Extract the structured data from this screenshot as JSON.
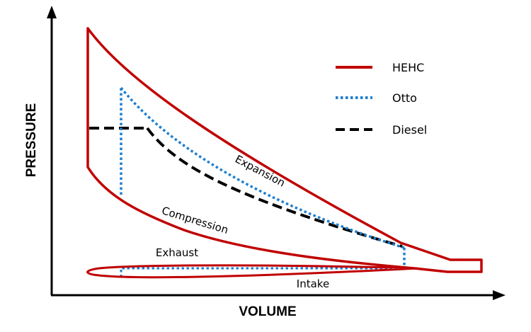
{
  "axes": {
    "x_label": "VOLUME",
    "y_label": "PRESSURE"
  },
  "legend": [
    {
      "key": "hehc",
      "label": "HEHC",
      "color": "#c00000",
      "style": "solid"
    },
    {
      "key": "otto",
      "label": "Otto",
      "color": "#1f7fcf",
      "style": "dotted"
    },
    {
      "key": "diesel",
      "label": "Diesel",
      "color": "#000000",
      "style": "dashed"
    }
  ],
  "annotations": {
    "expansion": "Expansion",
    "compression": "Compression",
    "exhaust": "Exhaust",
    "intake": "Intake"
  }
}
